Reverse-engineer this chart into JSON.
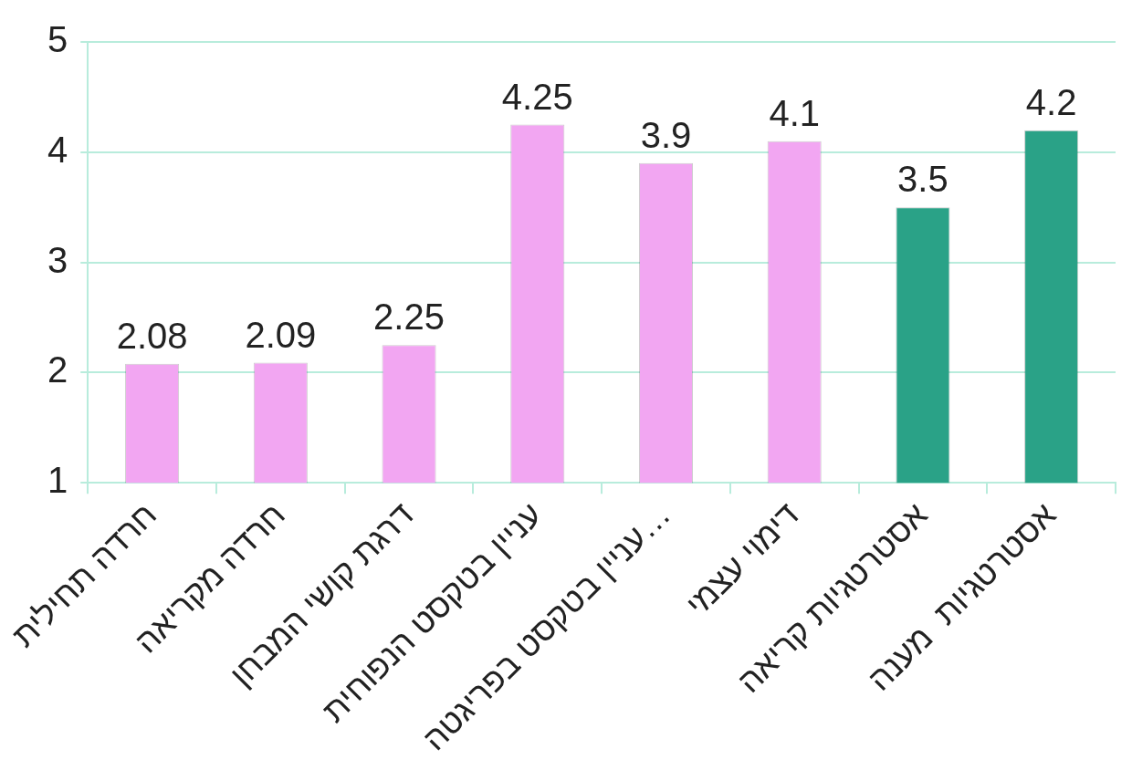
{
  "chart_data": {
    "type": "bar",
    "categories": [
      "חרדה תחילית",
      "חרדה מקריאה",
      "דרגת קושי המבחן",
      "עניין בטקסט הנפוחית",
      "עניין בטקסט בפריגטה…",
      "דימוי עצמי",
      "אסטרטגיות קריאה",
      "אסטרטגיות  מענה"
    ],
    "values": [
      2.08,
      2.09,
      2.25,
      4.25,
      3.9,
      4.1,
      3.5,
      4.2
    ],
    "colors": [
      "#f2a6f2",
      "#f2a6f2",
      "#f2a6f2",
      "#f2a6f2",
      "#f2a6f2",
      "#f2a6f2",
      "#2aa287",
      "#2aa287"
    ],
    "ylim": [
      1,
      5
    ],
    "yticks": [
      1,
      2,
      3,
      4,
      5
    ],
    "grid": "y",
    "data_labels": true,
    "legend": false
  }
}
